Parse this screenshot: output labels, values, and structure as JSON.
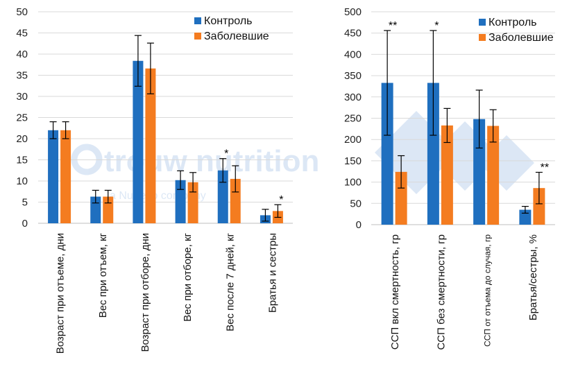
{
  "watermark": {
    "brand": "trouw nutrition",
    "tagline": "a Nutreco company",
    "color": "#2a72c4"
  },
  "colors": {
    "control": "#1f6fbf",
    "sick": "#f47c20",
    "grid": "#d9d9d9",
    "axis": "#bfbfbf"
  },
  "chart_data": [
    {
      "type": "bar",
      "ylim": [
        0,
        50
      ],
      "yticks": [
        0,
        5,
        10,
        15,
        20,
        25,
        30,
        35,
        40,
        45,
        50
      ],
      "grid": true,
      "legend": "top-right",
      "categories": [
        "Возраст при отъеме, дни",
        "Вес при отъем, кг",
        "Возраст при отборе, дни",
        "Вес при отборе, кг",
        "Вес после 7 дней, кг",
        "Братья и сестры"
      ],
      "series": [
        {
          "name": "Контроль",
          "values": [
            22,
            6.3,
            38.4,
            10.2,
            12.5,
            1.9
          ],
          "errors": [
            2,
            1.5,
            6,
            2.2,
            2.8,
            1.4
          ]
        },
        {
          "name": "Заболевшие",
          "values": [
            22,
            6.3,
            36.6,
            9.7,
            10.5,
            2.9
          ],
          "errors": [
            2,
            1.5,
            6,
            2.3,
            3.1,
            1.5
          ]
        }
      ],
      "annotations": [
        {
          "category_index": 4,
          "text": "*"
        },
        {
          "category_index": 5,
          "text": "*"
        }
      ]
    },
    {
      "type": "bar",
      "ylim": [
        0,
        500
      ],
      "yticks": [
        0,
        50,
        100,
        150,
        200,
        250,
        300,
        350,
        400,
        450,
        500
      ],
      "grid": true,
      "legend": "top-right",
      "categories": [
        "ССП вкл смертность, гр",
        "ССП без смертности, гр",
        "ССП от отъема до случая, гр",
        "Братья/сестры, %"
      ],
      "series": [
        {
          "name": "Контроль",
          "values": [
            333,
            333,
            248,
            35
          ],
          "errors": [
            123,
            123,
            68,
            8
          ]
        },
        {
          "name": "Заболевшие",
          "values": [
            124,
            233,
            232,
            86
          ],
          "errors": [
            38,
            40,
            38,
            37
          ]
        }
      ],
      "annotations": [
        {
          "category_index": 0,
          "text": "**"
        },
        {
          "category_index": 1,
          "text": "*"
        },
        {
          "category_index": 3,
          "text": "**"
        }
      ]
    }
  ]
}
